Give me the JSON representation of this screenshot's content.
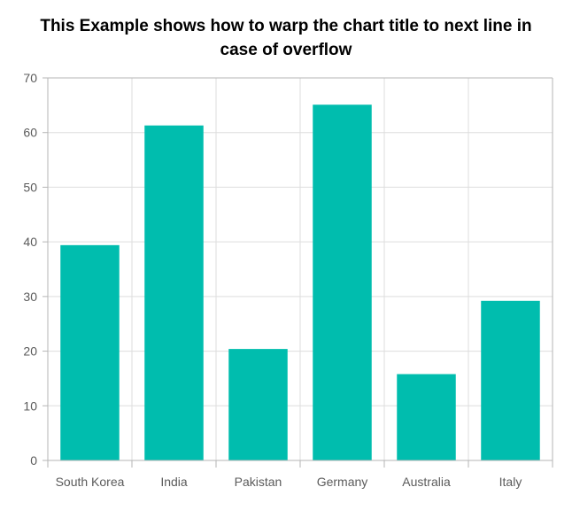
{
  "chart_data": {
    "type": "bar",
    "title_lines": [
      "This Example shows how to warp the chart title to next line in",
      "case of overflow"
    ],
    "categories": [
      "South Korea",
      "India",
      "Pakistan",
      "Germany",
      "Australia",
      "Italy"
    ],
    "values": [
      39.4,
      61.3,
      20.4,
      65.1,
      15.8,
      29.2
    ],
    "ylim": [
      0,
      70
    ],
    "yticks": [
      "0",
      "10",
      "20",
      "30",
      "40",
      "50",
      "60",
      "70"
    ],
    "grid": true,
    "legend": "none",
    "xlabel": "",
    "ylabel": "",
    "colors": {
      "bar": "#00bdae",
      "grid": "#dddddd",
      "axis": "#b5b5b5",
      "tick_text": "#5b5b5b",
      "title": "#000000"
    }
  }
}
